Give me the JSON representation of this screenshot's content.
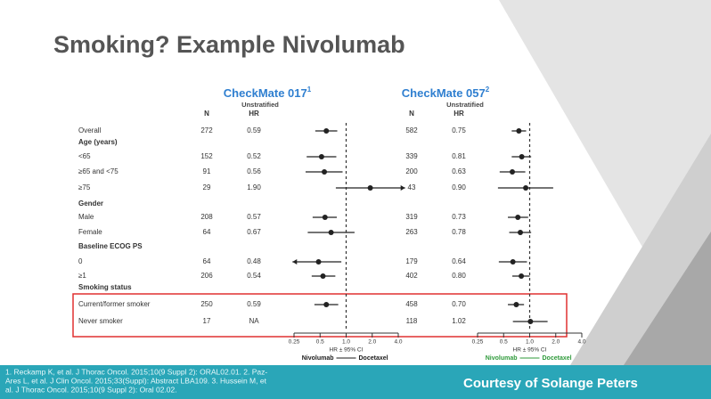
{
  "chart_data": {
    "type": "forest",
    "title": "Smoking? Example Nivolumab",
    "studies": [
      {
        "name": "CheckMate 017",
        "note": "1",
        "subtitle": "Unstratified",
        "n_header": "N",
        "hr_header": "HR",
        "color": "#1a1a1a"
      },
      {
        "name": "CheckMate 057",
        "note": "2",
        "subtitle": "Unstratified",
        "n_header": "N",
        "hr_header": "HR",
        "color": "#2e9a3a"
      }
    ],
    "xlim": [
      0.25,
      4
    ],
    "xticks": [
      0.25,
      0.5,
      {
        "value": 1,
        "label": "1.0"
      },
      {
        "value": 2,
        "label": "2.0"
      },
      {
        "value": 4,
        "label": "4.0"
      }
    ],
    "log_scale": true,
    "xlabel": "HR ± 95% CI",
    "favors_left": "Nivolumab",
    "favors_right": "Docetaxel",
    "rows": [
      {
        "label": "Overall",
        "data": [
          {
            "n": "272",
            "hr": "0.59",
            "ci": [
              0.44,
              0.79
            ]
          },
          {
            "n": "582",
            "hr": "0.75",
            "ci": [
              0.62,
              0.91
            ]
          }
        ]
      },
      {
        "label": "Age (years)"
      },
      {
        "label": "<65",
        "data": [
          {
            "n": "152",
            "hr": "0.52",
            "ci": [
              0.35,
              0.77
            ]
          },
          {
            "n": "339",
            "hr": "0.81",
            "ci": [
              0.62,
              1.04
            ]
          }
        ]
      },
      {
        "label": "≥65 and <75",
        "data": [
          {
            "n": "91",
            "hr": "0.56",
            "ci": [
              0.34,
              0.91
            ]
          },
          {
            "n": "200",
            "hr": "0.63",
            "ci": [
              0.45,
              0.89
            ]
          }
        ]
      },
      {
        "label": "≥75",
        "data": [
          {
            "n": "29",
            "hr": "1.90",
            "ci": [
              0.76,
              4.8
            ]
          },
          {
            "n": "43",
            "hr": "0.90",
            "ci": [
              0.43,
              1.87
            ]
          }
        ]
      },
      {
        "label": "Gender"
      },
      {
        "label": "Male",
        "data": [
          {
            "n": "208",
            "hr": "0.57",
            "ci": [
              0.41,
              0.78
            ]
          },
          {
            "n": "319",
            "hr": "0.73",
            "ci": [
              0.56,
              0.96
            ]
          }
        ]
      },
      {
        "label": "Female",
        "data": [
          {
            "n": "64",
            "hr": "0.67",
            "ci": [
              0.36,
              1.25
            ]
          },
          {
            "n": "263",
            "hr": "0.78",
            "ci": [
              0.58,
              1.04
            ]
          }
        ]
      },
      {
        "label": "Baseline ECOG PS"
      },
      {
        "label": "0",
        "data": [
          {
            "n": "64",
            "hr": "0.48",
            "ci": [
              0.24,
              0.88
            ]
          },
          {
            "n": "179",
            "hr": "0.64",
            "ci": [
              0.44,
              0.93
            ]
          }
        ]
      },
      {
        "label": "≥1",
        "data": [
          {
            "n": "206",
            "hr": "0.54",
            "ci": [
              0.4,
              0.75
            ]
          },
          {
            "n": "402",
            "hr": "0.80",
            "ci": [
              0.63,
              1.0
            ]
          }
        ]
      },
      {
        "label": "Smoking status"
      },
      {
        "label": "Current/former smoker",
        "data": [
          {
            "n": "250",
            "hr": "0.59",
            "ci": [
              0.43,
              0.81
            ]
          },
          {
            "n": "458",
            "hr": "0.70",
            "ci": [
              0.56,
              0.86
            ]
          }
        ]
      },
      {
        "label": "Never smoker",
        "data": [
          {
            "n": "17",
            "hr": "NA"
          },
          {
            "n": "118",
            "hr": "1.02",
            "ci": [
              0.64,
              1.61
            ]
          }
        ]
      }
    ],
    "references": [
      "1. Reckamp K, et al. J Thorac Oncol. 2015;10(9 Suppl 2): ORAL02.01. 2. Paz-",
      "Ares L, et al. J Clin Oncol. 2015;33(Suppl): Abstract LBA109. 3. Hussein M, et",
      "al. J Thorac Oncol. 2015;10(9 Suppl 2): Oral 02.02."
    ],
    "credit": "Courtesy of Solange Peters"
  }
}
